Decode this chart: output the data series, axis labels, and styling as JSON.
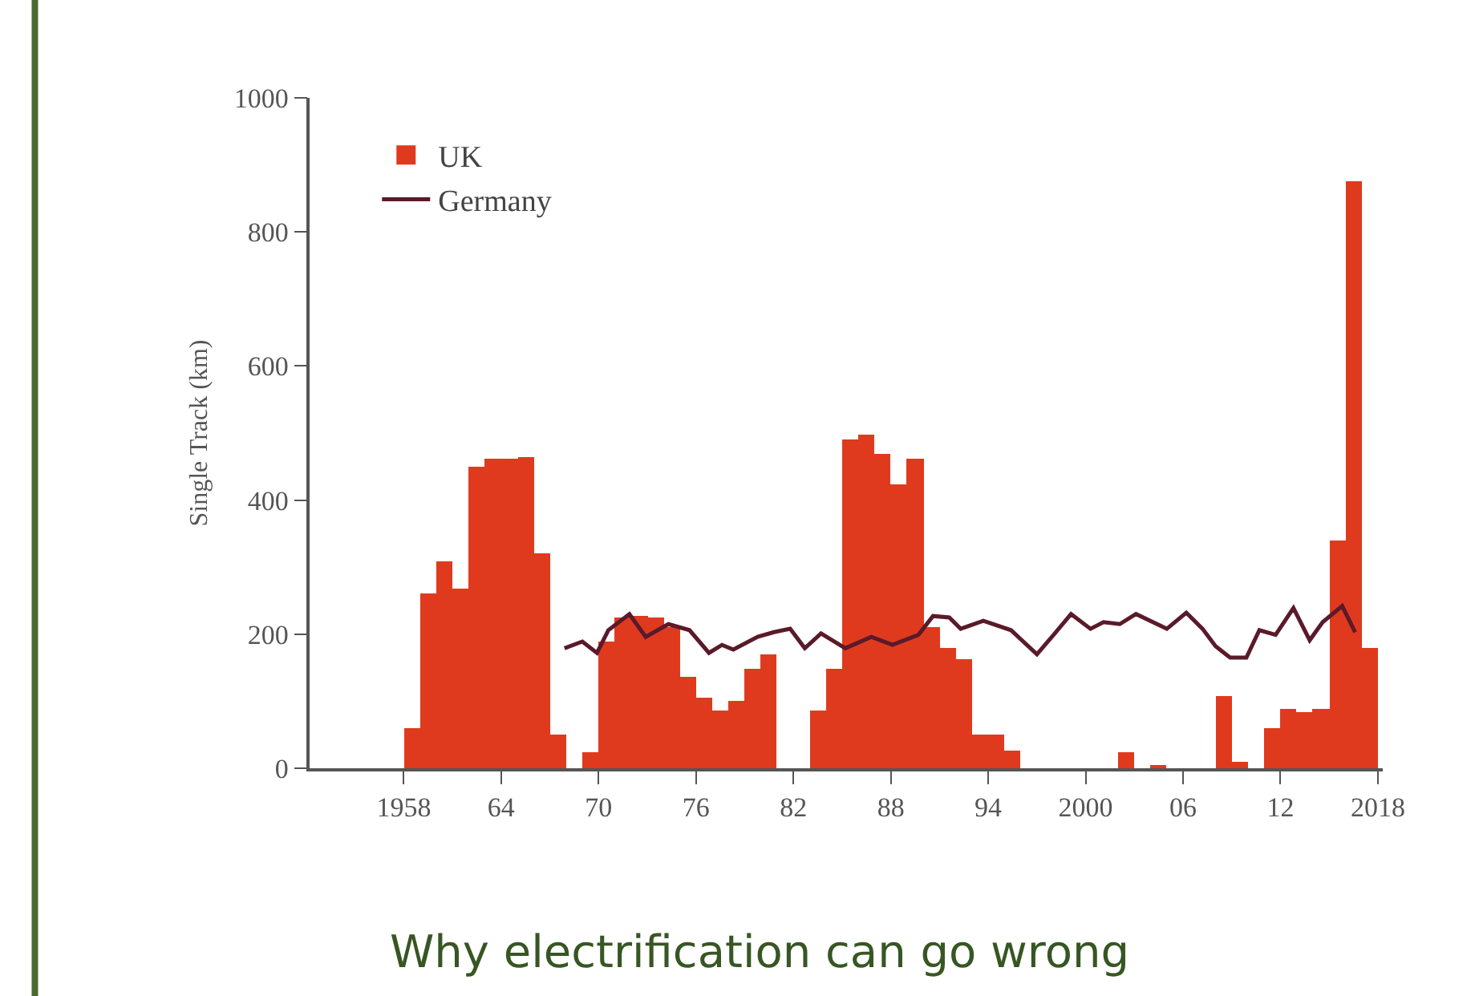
{
  "chart_data": {
    "type": "bar",
    "ylabel": "Single Track (km)",
    "annotations": [
      "Why electrification can go wrong"
    ],
    "x": [
      1958.5,
      1959.5,
      1960.5,
      1961.5,
      1962.5,
      1963.5,
      1964.5,
      1965.5,
      1966.5,
      1967.5,
      1968.5,
      1969.5,
      1970.5,
      1971.5,
      1972.5,
      1973.5,
      1974.5,
      1975.5,
      1976.5,
      1977.5,
      1978.5,
      1979.5,
      1980.5,
      1981.5,
      1982.5,
      1983.5,
      1984.5,
      1985.5,
      1986.5,
      1987.5,
      1988.5,
      1989.5,
      1990.5,
      1991.5,
      1992.5,
      1993.5,
      1994.5,
      1995.5,
      1996.5,
      1997.5,
      1998.5,
      1999.5,
      2000.5,
      2001.5,
      2002.5,
      2003.5,
      2004.5,
      2005.5,
      2006.5,
      2007.5,
      2008.5,
      2009.5,
      2010.5,
      2011.5,
      2012.5,
      2013.5,
      2014.5,
      2015.5,
      2016.5,
      2017.5
    ],
    "series": [
      {
        "name": "UK",
        "color": "#e03a1e",
        "values": [
          60,
          261,
          309,
          268,
          450,
          462,
          462,
          465,
          320,
          50,
          null,
          24,
          190,
          225,
          228,
          225,
          210,
          137,
          105,
          86,
          101,
          149,
          169,
          null,
          null,
          87,
          149,
          490,
          498,
          470,
          423,
          462,
          210,
          179,
          163,
          50,
          50,
          26,
          null,
          null,
          null,
          null,
          null,
          null,
          24,
          null,
          4,
          null,
          null,
          null,
          107,
          10,
          null,
          59,
          88,
          83,
          89,
          339,
          875,
          179
        ]
      },
      {
        "name": "Germany",
        "type": "line",
        "color": "#5a1a2a",
        "x": [
          1967.9,
          1969.0,
          1969.9,
          1970.6,
          1971.9,
          1972.9,
          1974.3,
          1975.6,
          1976.8,
          1977.6,
          1978.3,
          1979.8,
          1980.8,
          1981.8,
          1982.7,
          1983.7,
          1985.2,
          1986.8,
          1988.1,
          1989.7,
          1990.6,
          1991.6,
          1992.3,
          1993.7,
          1995.4,
          1997.0,
          1998.1,
          1999.1,
          2000.3,
          2001.1,
          2002.1,
          2003.1,
          2005.0,
          2006.2,
          2007.2,
          2008.0,
          2008.9,
          2009.9,
          2010.7,
          2011.7,
          2012.8,
          2013.8,
          2014.6,
          2015.8,
          2016.6
        ],
        "values": [
          179,
          189,
          172,
          206,
          230,
          196,
          215,
          206,
          172,
          184,
          177,
          196,
          203,
          208,
          179,
          201,
          179,
          196,
          184,
          199,
          227,
          225,
          208,
          220,
          206,
          170,
          201,
          230,
          208,
          218,
          215,
          230,
          208,
          232,
          208,
          182,
          165,
          165,
          206,
          199,
          239,
          191,
          218,
          242,
          203
        ]
      }
    ],
    "xlim": [
      1952.2,
      2018.3
    ],
    "xticks": [
      1958,
      {
        "value": 1964,
        "label": "64"
      },
      {
        "value": 1970,
        "label": "70"
      },
      {
        "value": 1976,
        "label": "76"
      },
      {
        "value": 1982,
        "label": "82"
      },
      {
        "value": 1988,
        "label": "88"
      },
      {
        "value": 1994,
        "label": "94"
      },
      2000,
      {
        "value": 2006,
        "label": "06"
      },
      {
        "value": 2012,
        "label": "12"
      },
      2018
    ],
    "ylim": [
      0,
      1000
    ],
    "yticks": [
      0,
      200,
      400,
      600,
      800,
      1000
    ],
    "legend": "top left",
    "marker": "none",
    "line_style": "solid"
  }
}
